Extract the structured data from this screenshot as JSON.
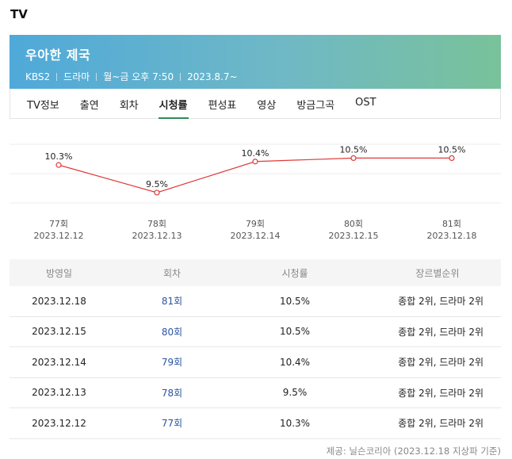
{
  "section_title": "TV",
  "show": {
    "title": "우아한 제국",
    "channel": "KBS2",
    "genre": "드라마",
    "schedule": "월~금 오후 7:50",
    "start_date": "2023.8.7~"
  },
  "tabs": [
    {
      "label": "TV정보",
      "active": false
    },
    {
      "label": "출연",
      "active": false
    },
    {
      "label": "회차",
      "active": false
    },
    {
      "label": "시청률",
      "active": true
    },
    {
      "label": "편성표",
      "active": false
    },
    {
      "label": "영상",
      "active": false
    },
    {
      "label": "방금그곡",
      "active": false
    },
    {
      "label": "OST",
      "active": false
    }
  ],
  "chart_data": {
    "type": "line",
    "categories": [
      "77회",
      "78회",
      "79회",
      "80회",
      "81회"
    ],
    "dates": [
      "2023.12.12",
      "2023.12.13",
      "2023.12.14",
      "2023.12.15",
      "2023.12.18"
    ],
    "values": [
      10.3,
      9.5,
      10.4,
      10.5,
      10.5
    ],
    "value_labels": [
      "10.3%",
      "9.5%",
      "10.4%",
      "10.5%",
      "10.5%"
    ],
    "line_color": "#e03a3a",
    "grid": true
  },
  "table": {
    "headers": [
      "방영일",
      "회차",
      "시청률",
      "장르별순위"
    ],
    "rows": [
      {
        "date": "2023.12.18",
        "episode": "81회",
        "rating": "10.5%",
        "rank": "종합 2위, 드라마 2위"
      },
      {
        "date": "2023.12.15",
        "episode": "80회",
        "rating": "10.5%",
        "rank": "종합 2위, 드라마 2위"
      },
      {
        "date": "2023.12.14",
        "episode": "79회",
        "rating": "10.4%",
        "rank": "종합 2위, 드라마 2위"
      },
      {
        "date": "2023.12.13",
        "episode": "78회",
        "rating": "9.5%",
        "rank": "종합 2위, 드라마 2위"
      },
      {
        "date": "2023.12.12",
        "episode": "77회",
        "rating": "10.3%",
        "rank": "종합 2위, 드라마 2위"
      }
    ]
  },
  "source": "제공: 닐슨코리아 (2023.12.18 지상파 기준)"
}
